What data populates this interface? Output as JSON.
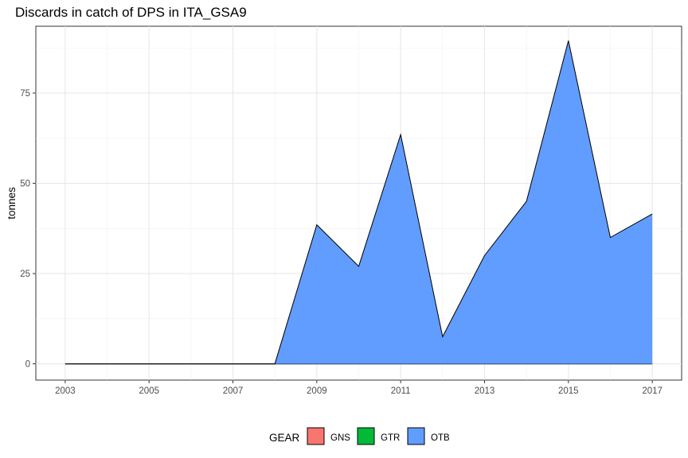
{
  "chart_data": {
    "type": "area",
    "title": "Discards in catch of DPS in ITA_GSA9",
    "xlabel": "",
    "ylabel": "tonnes",
    "x": [
      2003,
      2004,
      2005,
      2006,
      2007,
      2008,
      2009,
      2010,
      2011,
      2012,
      2013,
      2014,
      2015,
      2016,
      2017
    ],
    "xticks": [
      2003,
      2005,
      2007,
      2009,
      2011,
      2013,
      2015,
      2017
    ],
    "yticks": [
      0,
      25,
      50,
      75
    ],
    "xlim": [
      2002.3,
      2017.7
    ],
    "ylim": [
      -4.5,
      93.5
    ],
    "grid": true,
    "legend_position": "bottom",
    "legend_title": "GEAR",
    "series": [
      {
        "name": "GNS",
        "color": "#F8766D",
        "values": [
          0,
          0,
          0,
          0,
          0,
          0,
          0,
          0,
          0,
          0,
          0,
          0,
          0,
          0,
          0
        ]
      },
      {
        "name": "GTR",
        "color": "#00BA38",
        "values": [
          0,
          0,
          0,
          0,
          0,
          0,
          0,
          0,
          0,
          0,
          0,
          0,
          0,
          0,
          0
        ]
      },
      {
        "name": "OTB",
        "color": "#619CFF",
        "values": [
          0,
          0,
          0,
          0,
          0,
          0,
          38.5,
          27,
          63.5,
          7.5,
          30,
          45,
          89.5,
          35,
          41.5
        ]
      }
    ]
  }
}
